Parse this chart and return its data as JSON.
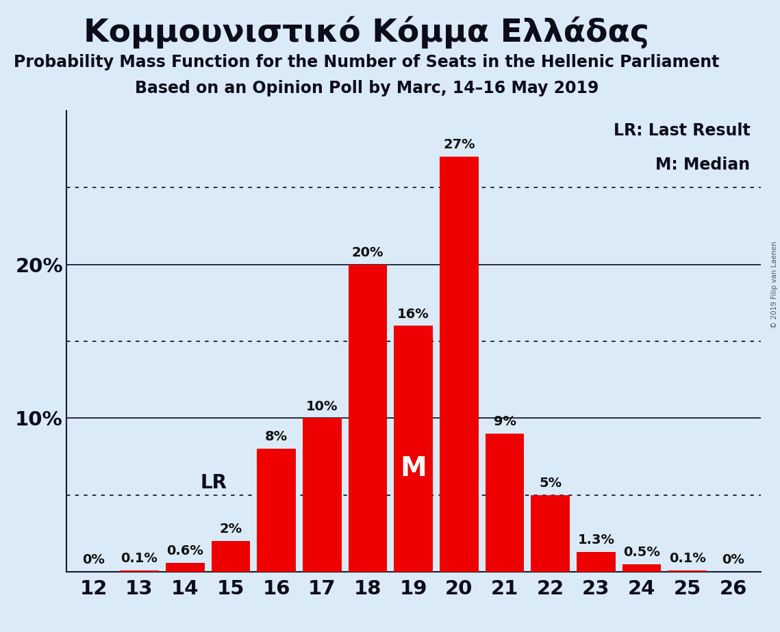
{
  "title": "Κομμουνιστικό Κόμμα Ελλάδας",
  "subtitle1": "Probability Mass Function for the Number of Seats in the Hellenic Parliament",
  "subtitle2": "Based on an Opinion Poll by Marc, 14–16 May 2019",
  "copyright": "© 2019 Filip van Laenen",
  "seats": [
    12,
    13,
    14,
    15,
    16,
    17,
    18,
    19,
    20,
    21,
    22,
    23,
    24,
    25,
    26
  ],
  "values": [
    0.0,
    0.1,
    0.6,
    2.0,
    8.0,
    10.0,
    20.0,
    16.0,
    27.0,
    9.0,
    5.0,
    1.3,
    0.5,
    0.1,
    0.0
  ],
  "labels": [
    "0%",
    "0.1%",
    "0.6%",
    "2%",
    "8%",
    "10%",
    "20%",
    "16%",
    "27%",
    "9%",
    "5%",
    "1.3%",
    "0.5%",
    "0.1%",
    "0%"
  ],
  "bar_color": "#ee0000",
  "background_color": "#daeaf7",
  "lr_seat": 15,
  "median_seat": 19,
  "yticks_solid": [
    10,
    20
  ],
  "yticks_dotted": [
    5,
    15,
    25
  ],
  "ylim": [
    0,
    30
  ],
  "title_fontsize": 34,
  "subtitle_fontsize": 17,
  "axis_label_fontsize": 21,
  "bar_label_fontsize": 14,
  "annotation_fontsize": 20,
  "legend_fontsize": 17,
  "copyright_fontsize": 7.5
}
